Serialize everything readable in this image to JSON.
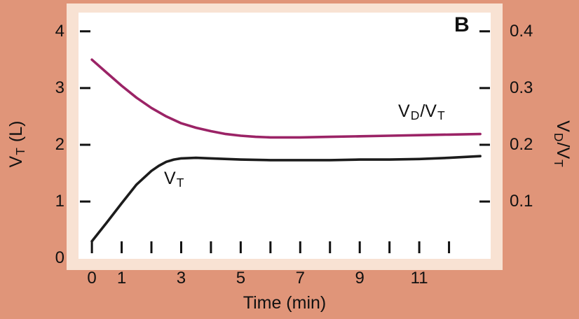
{
  "labels": {
    "panel": "B",
    "x_axis_title": "Time (min)",
    "left_axis_title": {
      "base": "V",
      "sub": "T",
      "rest": " (L)"
    },
    "right_axis_title": {
      "base1": "V",
      "sub1": "D",
      "slash": "/",
      "base2": "V",
      "sub2": "T"
    },
    "curve_vt": {
      "base": "V",
      "sub": "T"
    },
    "curve_vdvt": {
      "base1": "V",
      "sub1": "D",
      "slash": "/",
      "base2": "V",
      "sub2": "T"
    }
  },
  "colors": {
    "background": "#e09579",
    "frame": "#f8e2d3",
    "plot_bg": "#ffffff",
    "vt_curve": "#1c1c1c",
    "vdvt_curve": "#9b2366",
    "tick": "#111111",
    "text": "#111111"
  },
  "chart_data": {
    "type": "line",
    "title": "",
    "xlabel": "Time (min)",
    "ylabel_left": "VT (L)",
    "ylabel_right": "VD/VT",
    "xlim": [
      -0.45,
      13.4
    ],
    "ylim_left": [
      -0.01,
      4.33
    ],
    "ylim_right": [
      -0.001,
      0.433
    ],
    "grid": false,
    "x_ticks": [
      0,
      1,
      2,
      3,
      4,
      5,
      6,
      7,
      8,
      9,
      10,
      11,
      12
    ],
    "x_tick_labels": [
      "0",
      "1",
      "3",
      "5",
      "7",
      "9",
      "11"
    ],
    "x_tick_label_values": [
      0,
      1,
      3,
      5,
      7,
      9,
      11
    ],
    "left_ticks": [
      1,
      2,
      3,
      4
    ],
    "left_tick_labels": [
      "0",
      "1",
      "2",
      "3",
      "4"
    ],
    "left_tick_label_values": [
      0,
      1,
      2,
      3,
      4
    ],
    "right_ticks": [
      0.1,
      0.2,
      0.3,
      0.4
    ],
    "right_tick_labels": [
      "0.1",
      "0.2",
      "0.3",
      "0.4"
    ],
    "right_tick_label_values": [
      0.1,
      0.2,
      0.3,
      0.4
    ],
    "series": [
      {
        "name": "VT",
        "key": "vt",
        "axis": "left",
        "color": "#1c1c1c",
        "x": [
          0,
          0.5,
          1,
          1.5,
          2,
          2.25,
          2.5,
          2.75,
          3,
          3.5,
          4,
          5,
          6,
          7,
          8,
          9,
          10,
          11,
          12,
          13.05
        ],
        "values": [
          0.3,
          0.63,
          0.97,
          1.3,
          1.54,
          1.63,
          1.7,
          1.74,
          1.76,
          1.77,
          1.76,
          1.74,
          1.73,
          1.73,
          1.73,
          1.74,
          1.74,
          1.75,
          1.77,
          1.8
        ]
      },
      {
        "name": "VD/VT",
        "key": "vdvt",
        "axis": "right",
        "color": "#9b2366",
        "x": [
          0,
          0.5,
          1,
          1.5,
          2,
          2.5,
          3,
          3.5,
          4,
          4.5,
          5,
          5.5,
          6,
          7,
          8,
          9,
          10,
          11,
          12,
          13.05
        ],
        "values": [
          0.35,
          0.327,
          0.304,
          0.283,
          0.265,
          0.25,
          0.238,
          0.23,
          0.224,
          0.219,
          0.216,
          0.214,
          0.213,
          0.213,
          0.214,
          0.215,
          0.216,
          0.217,
          0.218,
          0.219
        ]
      }
    ]
  }
}
